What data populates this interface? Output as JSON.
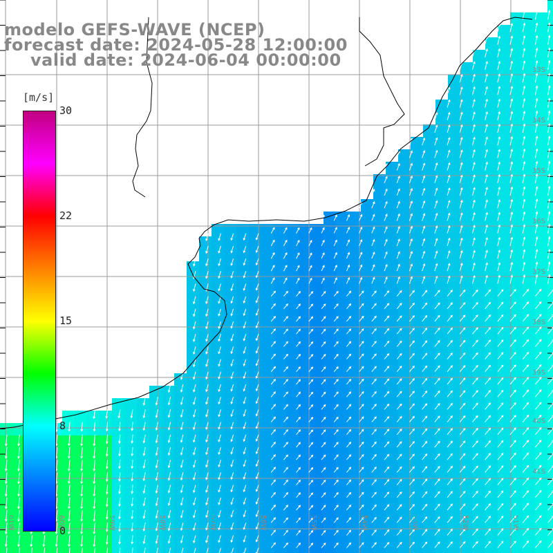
{
  "title": {
    "line1": "modelo GEFS-WAVE (NCEP)",
    "line2": "forecast date: 2024-05-28 12:00:00",
    "line3": "valid date: 2024-06-04 00:00:00"
  },
  "colorbar": {
    "unit": "[m/s]",
    "ticks": [
      "30",
      "22",
      "15",
      "8",
      "0"
    ],
    "tick_values": [
      30,
      22,
      15,
      8,
      0
    ],
    "colors": [
      "#0000ff",
      "#0080ff",
      "#00ffff",
      "#00ff00",
      "#ffff00",
      "#ff8000",
      "#ff0000",
      "#ff00ff",
      "#c00080"
    ]
  },
  "grid": {
    "lon_labels": [
      "61W",
      "60W",
      "59W",
      "58W",
      "57W",
      "56W",
      "55W",
      "54W",
      "53W",
      "52W",
      "51W"
    ],
    "lat_labels": [
      "33S",
      "34S",
      "35S",
      "36S",
      "37S",
      "38S",
      "39S",
      "40S",
      "41S"
    ]
  },
  "field": {
    "description_values": "wind speed 0-30 m/s, mostly 3-9 m/s",
    "ocean_color_low": "#0033ee",
    "ocean_color_mid": "#0088ff",
    "ocean_color_high": "#00ffcc"
  }
}
